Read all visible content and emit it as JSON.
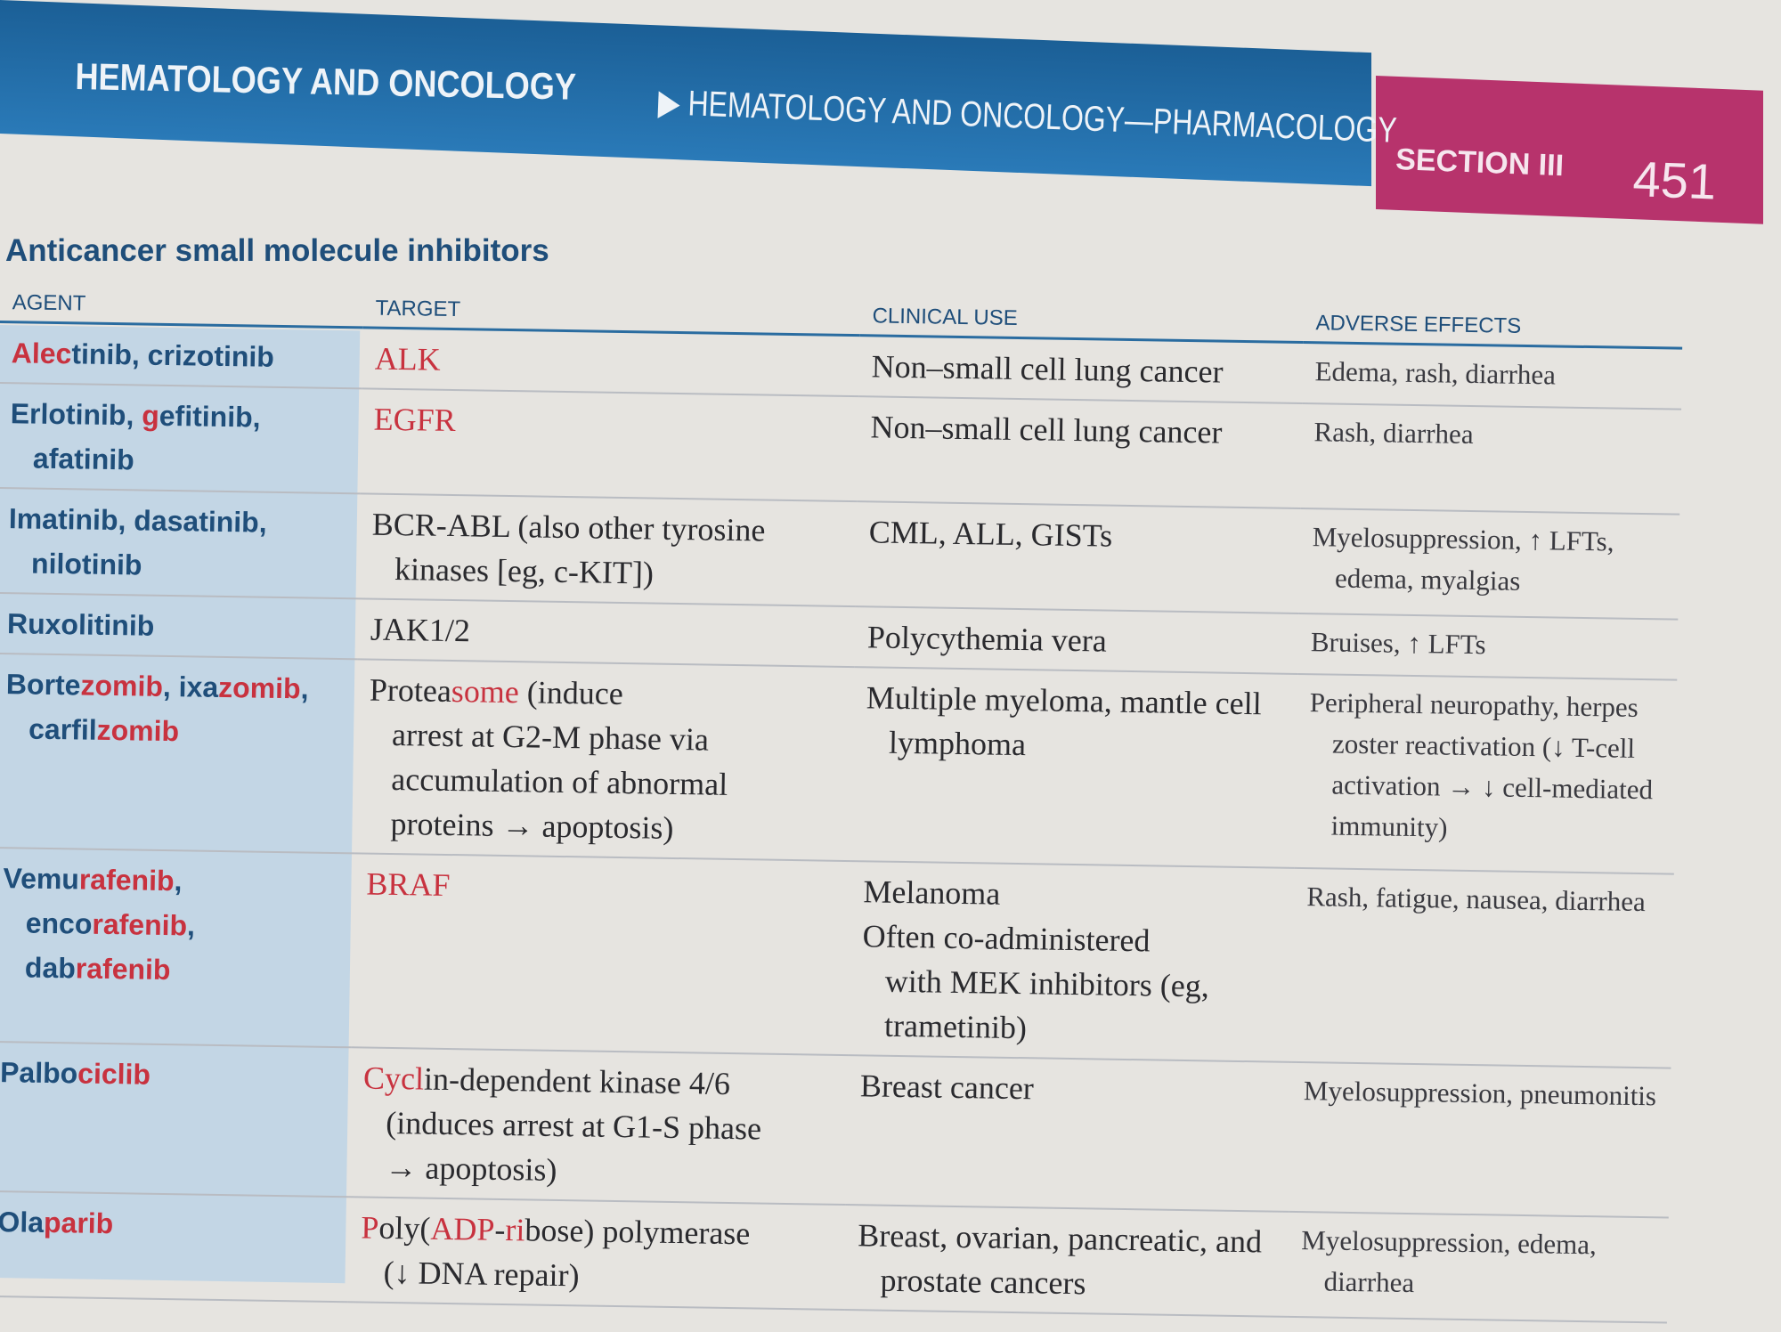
{
  "header": {
    "book": "HEMATOLOGY AND ONCOLOGY",
    "chapter": "HEMATOLOGY AND ONCOLOGY—PHARMACOLOGY",
    "section": "SECTION III",
    "page": "451",
    "arrow_icon": "triangle-right"
  },
  "colors": {
    "header_blue": "#2370ab",
    "section_magenta": "#b7336c",
    "highlight_red": "#c8323f",
    "agent_bg": "#c3d6e5"
  },
  "table": {
    "title": "Anticancer small molecule inhibitors",
    "columns": [
      "AGENT",
      "TARGET",
      "CLINICAL USE",
      "ADVERSE EFFECTS"
    ],
    "rows": [
      {
        "agent": [
          [
            "Alec",
            1
          ],
          [
            "tinib, crizotinib",
            0
          ]
        ],
        "target": [
          [
            "ALK",
            1
          ]
        ],
        "clinical": [
          "Non–small cell lung cancer"
        ],
        "adverse": [
          "Edema, rash, diarrhea"
        ]
      },
      {
        "agent": [
          [
            "Erlotinib, ",
            0
          ],
          [
            "g",
            1
          ],
          [
            "efitinib,",
            0
          ],
          [
            "\n",
            0
          ],
          [
            "afatinib",
            0
          ]
        ],
        "target": [
          [
            "EGFR",
            1
          ]
        ],
        "clinical": [
          "Non–small cell lung cancer"
        ],
        "adverse": [
          "Rash, diarrhea"
        ]
      },
      {
        "agent": [
          [
            "Imatinib, dasatinib,\nnilotinib",
            0
          ]
        ],
        "target": [
          [
            "BCR-ABL (also other tyrosine\nkinases [eg, c-KIT])",
            0
          ]
        ],
        "clinical": [
          "CML, ALL, GISTs"
        ],
        "adverse": [
          "Myelosuppression, ↑ LFTs,",
          "edema, myalgias"
        ]
      },
      {
        "agent": [
          [
            "Ruxolitinib",
            0
          ]
        ],
        "target": [
          [
            "JAK1/2",
            0
          ]
        ],
        "clinical": [
          "Polycythemia vera"
        ],
        "adverse": [
          "Bruises, ↑ LFTs"
        ]
      },
      {
        "agent": [
          [
            "Borte",
            0
          ],
          [
            "zomib",
            1
          ],
          [
            ", ixa",
            0
          ],
          [
            "zomib",
            1
          ],
          [
            ",\ncarfil",
            0
          ],
          [
            "zomib",
            1
          ]
        ],
        "target": [
          [
            "Protea",
            0
          ],
          [
            "some",
            1
          ],
          [
            " (induce\narrest at G2-M phase via\naccumulation of abnormal\nproteins → apoptosis)",
            0
          ]
        ],
        "clinical": [
          "Multiple myeloma, mantle cell",
          "lymphoma"
        ],
        "adverse": [
          "Peripheral neuropathy, herpes",
          "zoster reactivation (↓ T-cell",
          "activation → ↓ cell-mediated",
          "immunity)"
        ]
      },
      {
        "agent": [
          [
            "Vemu",
            0
          ],
          [
            "rafenib",
            1
          ],
          [
            ",\nenco",
            0
          ],
          [
            "rafenib",
            1
          ],
          [
            ",\ndab",
            0
          ],
          [
            "rafenib",
            1
          ]
        ],
        "target": [
          [
            "BRAF",
            1
          ]
        ],
        "clinical": [
          "Melanoma",
          "Often co-administered",
          "with MEK inhibitors (eg,",
          "trametinib)"
        ],
        "adverse": [
          "Rash, fatigue, nausea, diarrhea"
        ]
      },
      {
        "agent": [
          [
            "Palbo",
            0
          ],
          [
            "ciclib",
            1
          ]
        ],
        "target": [
          [
            "Cycl",
            1
          ],
          [
            "in-dependent kinase 4/6\n(induces arrest at G1-S phase\n→ apoptosis)",
            0
          ]
        ],
        "clinical": [
          "Breast cancer"
        ],
        "adverse": [
          "Myelosuppression, pneumonitis"
        ]
      },
      {
        "agent": [
          [
            "Ola",
            0
          ],
          [
            "parib",
            1
          ]
        ],
        "target": [
          [
            "P",
            1
          ],
          [
            "oly(",
            0
          ],
          [
            "ADP",
            1
          ],
          [
            "-",
            0
          ],
          [
            "ri",
            1
          ],
          [
            "bose) polymerase\n(↓ DNA repair)",
            0
          ]
        ],
        "clinical": [
          "Breast, ovarian, pancreatic, and",
          "prostate cancers"
        ],
        "adverse": [
          "Myelosuppression, edema,",
          "diarrhea"
        ]
      }
    ]
  }
}
